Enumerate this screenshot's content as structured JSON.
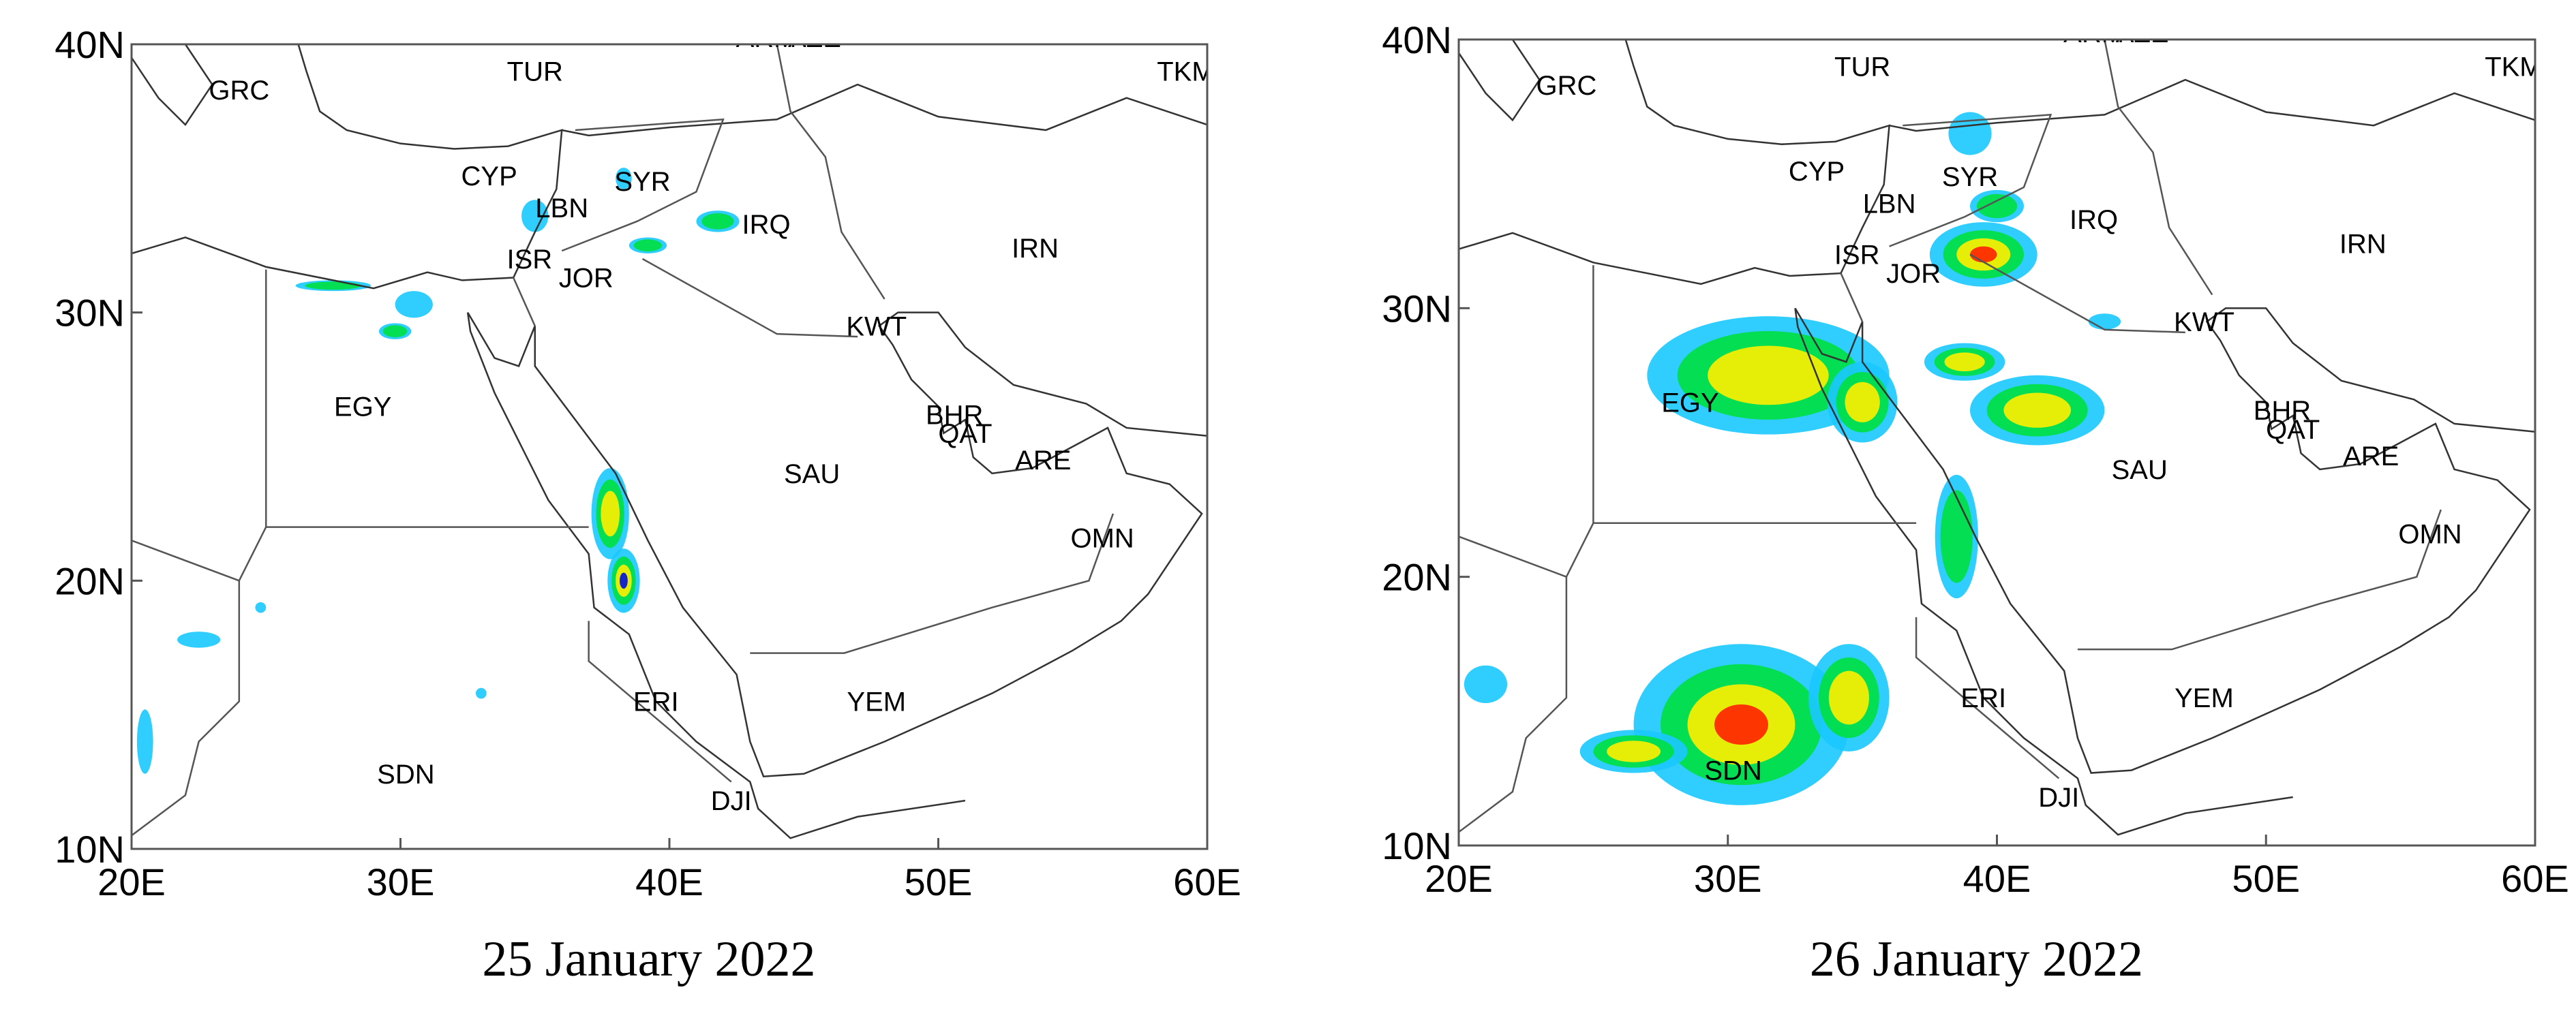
{
  "panels": [
    {
      "caption": "25 January 2022",
      "xlim": [
        20,
        60
      ],
      "ylim": [
        10,
        40
      ],
      "xticks": [
        {
          "value": 20,
          "label": "20E"
        },
        {
          "value": 30,
          "label": "30E"
        },
        {
          "value": 40,
          "label": "40E"
        },
        {
          "value": 50,
          "label": "50E"
        },
        {
          "value": 60,
          "label": "60E"
        }
      ],
      "yticks": [
        {
          "value": 10,
          "label": "10N"
        },
        {
          "value": 20,
          "label": "20N"
        },
        {
          "value": 30,
          "label": "30N"
        },
        {
          "value": 40,
          "label": "40N"
        }
      ],
      "countries": [
        "GRC",
        "TUR",
        "ARM",
        "AZE",
        "TKM",
        "CYP",
        "SYR",
        "LBN",
        "IRQ",
        "ISR",
        "JOR",
        "IRN",
        "KWT",
        "EGY",
        "BHR",
        "QAT",
        "ARE",
        "SAU",
        "OMN",
        "YEM",
        "ERI",
        "SDN",
        "DJI"
      ]
    },
    {
      "caption": "26 January 2022",
      "xlim": [
        20,
        60
      ],
      "ylim": [
        10,
        40
      ],
      "xticks": [
        {
          "value": 20,
          "label": "20E"
        },
        {
          "value": 30,
          "label": "30E"
        },
        {
          "value": 40,
          "label": "40E"
        },
        {
          "value": 50,
          "label": "50E"
        },
        {
          "value": 60,
          "label": "60E"
        }
      ],
      "yticks": [
        {
          "value": 10,
          "label": "10N"
        },
        {
          "value": 20,
          "label": "20N"
        },
        {
          "value": 30,
          "label": "30N"
        },
        {
          "value": 40,
          "label": "40N"
        }
      ],
      "countries": [
        "GRC",
        "TUR",
        "ARM",
        "AZE",
        "TKM",
        "CYP",
        "SYR",
        "LBN",
        "IRQ",
        "ISR",
        "JOR",
        "IRN",
        "KWT",
        "EGY",
        "BHR",
        "QAT",
        "ARE",
        "SAU",
        "OMN",
        "YEM",
        "ERI",
        "SDN",
        "DJI"
      ]
    }
  ]
}
